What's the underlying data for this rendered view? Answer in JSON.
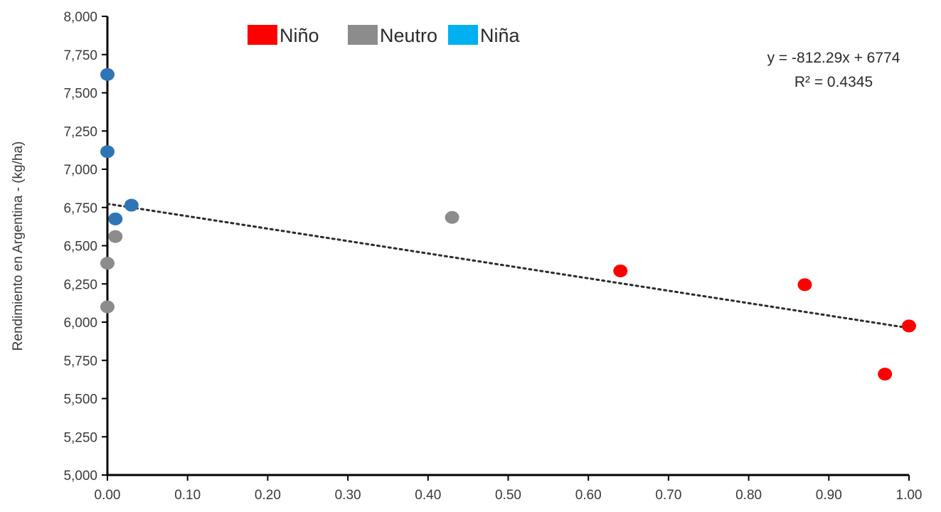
{
  "chart_data": {
    "type": "scatter",
    "ylabel": "Rendimiento en Argentina - (kg/ha)",
    "xlabel": "",
    "xlim": [
      0,
      1
    ],
    "ylim": [
      5000,
      8000
    ],
    "x_ticks": [
      "0.00",
      "0.10",
      "0.20",
      "0.30",
      "0.40",
      "0.50",
      "0.60",
      "0.70",
      "0.80",
      "0.90",
      "1.00"
    ],
    "y_ticks": [
      "5,000",
      "5,250",
      "5,500",
      "5,750",
      "6,000",
      "6,250",
      "6,500",
      "6,750",
      "7,000",
      "7,250",
      "7,500",
      "7,750",
      "8,000"
    ],
    "grid": false,
    "legend_position": "top-left",
    "legend": [
      {
        "name": "Niño",
        "color": "#ff0000"
      },
      {
        "name": "Neutro",
        "color": "#8c8c8c"
      },
      {
        "name": "Niña",
        "color": "#00b0f0"
      }
    ],
    "series": [
      {
        "name": "Niña",
        "color": "#2e75b6",
        "points": [
          {
            "x": 0.0,
            "y": 7620
          },
          {
            "x": 0.0,
            "y": 7115
          },
          {
            "x": 0.03,
            "y": 6765
          },
          {
            "x": 0.01,
            "y": 6675
          }
        ]
      },
      {
        "name": "Neutro",
        "color": "#8c8c8c",
        "points": [
          {
            "x": 0.01,
            "y": 6560
          },
          {
            "x": 0.0,
            "y": 6385
          },
          {
            "x": 0.0,
            "y": 6100
          },
          {
            "x": 0.43,
            "y": 6685
          }
        ]
      },
      {
        "name": "Niño",
        "color": "#ff0000",
        "points": [
          {
            "x": 0.64,
            "y": 6335
          },
          {
            "x": 0.87,
            "y": 6245
          },
          {
            "x": 1.0,
            "y": 5975
          },
          {
            "x": 0.97,
            "y": 5660
          }
        ]
      }
    ],
    "trendline": {
      "slope": -812.29,
      "intercept": 6774,
      "style": "dotted",
      "color": "#2b2b2b"
    },
    "annotations": {
      "equation": "y = -812.29x + 6774",
      "r_squared": "R² = 0.4345"
    }
  }
}
